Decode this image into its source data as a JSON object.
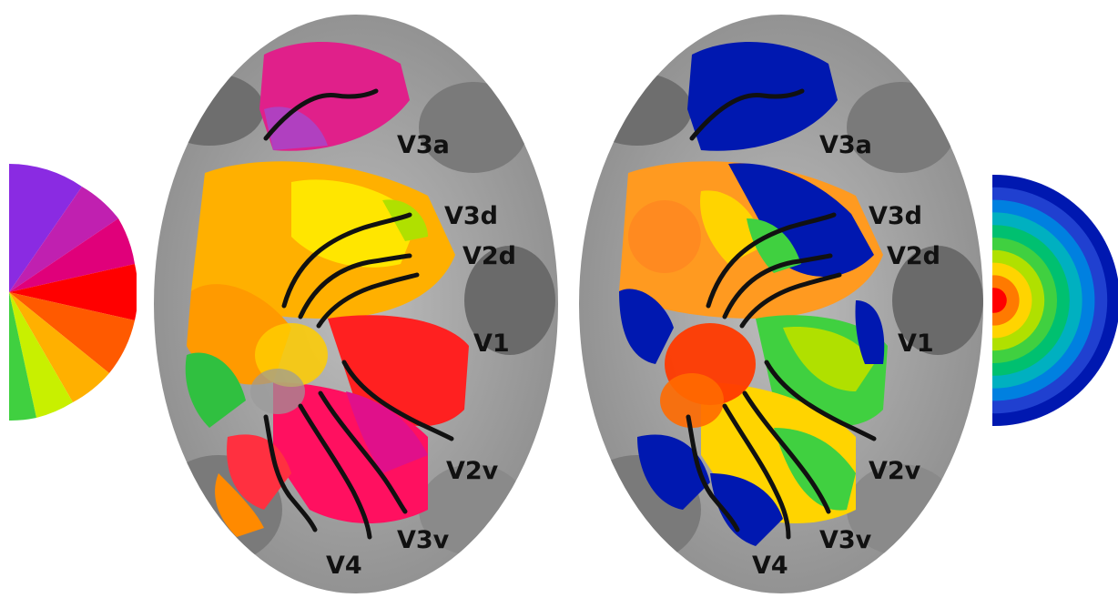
{
  "left_map": {
    "labels": {
      "v3a": "V3a",
      "v3d": "V3d",
      "v2d": "V2d",
      "v1": "V1",
      "v2v": "V2v",
      "v3v": "V3v",
      "v4": "V4"
    }
  },
  "right_map": {
    "labels": {
      "v3a": "V3a",
      "v3d": "V3d",
      "v2d": "V2d",
      "v1": "V1",
      "v2v": "V2v",
      "v3v": "V3v",
      "v4": "V4"
    }
  },
  "polar_angle_legend": {
    "icon": "color-wheel-half",
    "colors": [
      "#8a2be2",
      "#e0007a",
      "#ff0000",
      "#ff8c00",
      "#ffe600",
      "#7cfc00",
      "#00c040"
    ]
  },
  "eccentricity_legend": {
    "icon": "concentric-rings-half",
    "colors": [
      "#ff0000",
      "#ff7a00",
      "#ffd400",
      "#b0e000",
      "#40d040",
      "#00c070",
      "#00b0c0",
      "#0080e0",
      "#2040d0",
      "#0018b0"
    ]
  },
  "colors": {
    "cortex_gray_dark": "#6e6e6e",
    "cortex_gray_light": "#c8c8c8",
    "border_line": "#111111"
  }
}
